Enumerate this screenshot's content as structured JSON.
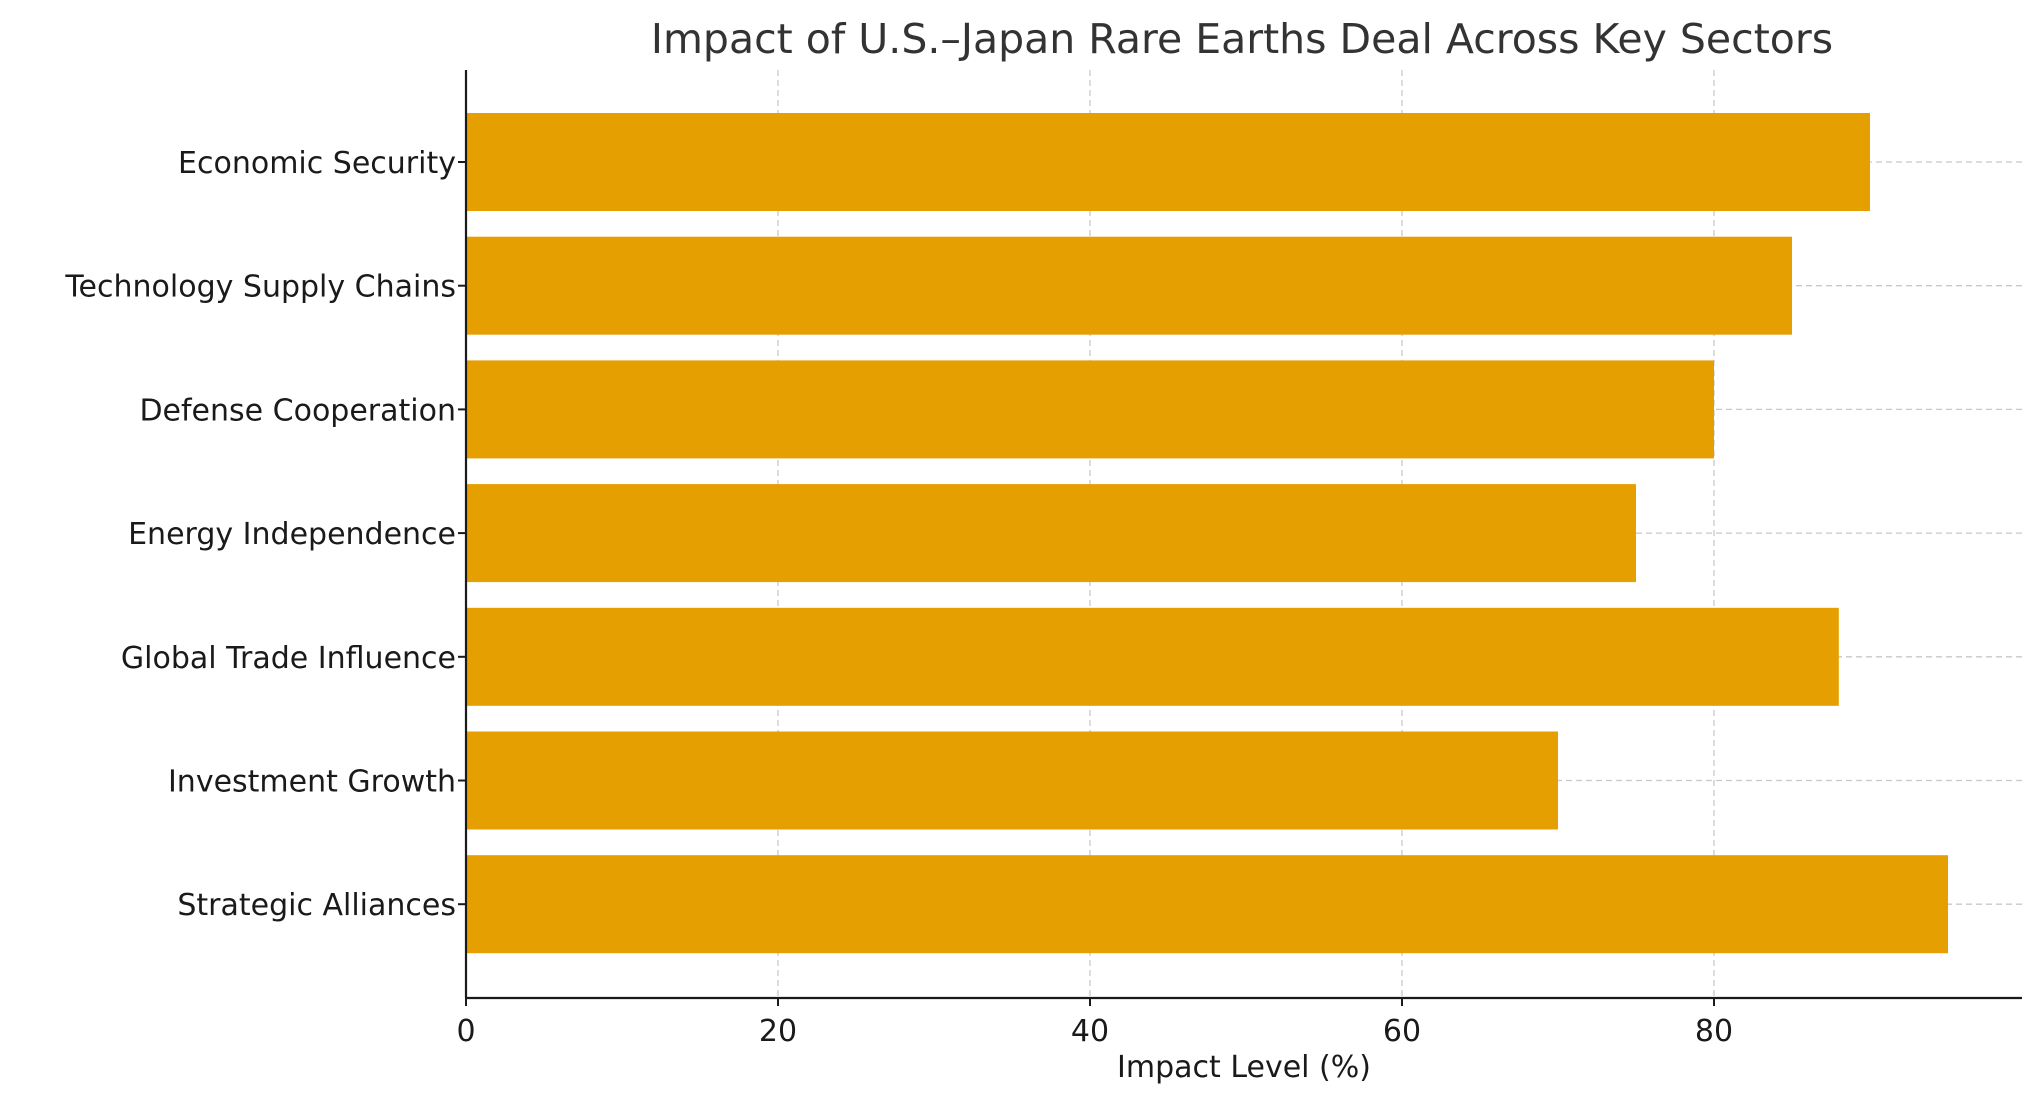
{
  "chart_data": {
    "type": "bar",
    "orientation": "horizontal",
    "title": "Impact of U.S.–Japan Rare Earths Deal Across Key Sectors",
    "xlabel": "Impact Level (%)",
    "ylabel": "",
    "categories": [
      "Economic Security",
      "Technology Supply Chains",
      "Defense Cooperation",
      "Energy Independence",
      "Global Trade Influence",
      "Investment Growth",
      "Strategic Alliances"
    ],
    "values": [
      90,
      85,
      80,
      75,
      88,
      70,
      95
    ],
    "xlim": [
      0,
      99.75
    ],
    "xticks": [
      0,
      20,
      40,
      60,
      80
    ],
    "bar_color": "#e69f00",
    "grid": true,
    "legend": "none"
  }
}
